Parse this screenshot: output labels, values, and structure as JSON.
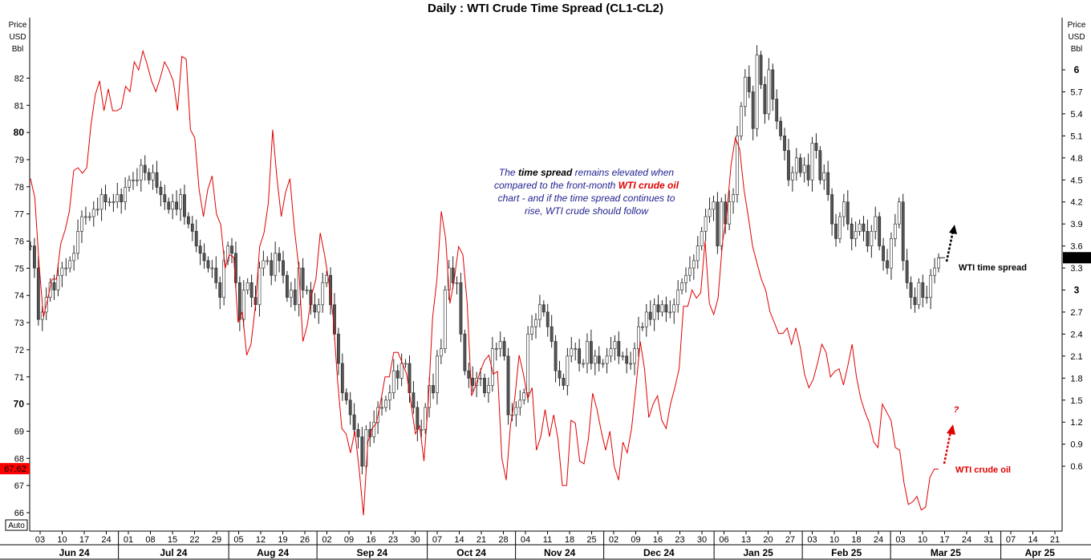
{
  "title": "Daily : WTI Crude Time Spread (CL1-CL2)",
  "left_axis_unit": [
    "Price",
    "USD",
    "Bbl"
  ],
  "right_axis_unit": [
    "Price",
    "USD",
    "Bbl"
  ],
  "auto_label": "Auto",
  "annotation": {
    "line1_pre": "The",
    "line1_bold": "time spread",
    "line1_post": "remains elevated when",
    "line2_pre": "compared to the front-month",
    "line2_red": "WTI crude oil",
    "line3": "chart - and if the time spread continues to",
    "line4": "rise, WTI crude should follow"
  },
  "labels": {
    "spread": "WTI time spread",
    "crude": "WTI crude oil",
    "question": "?"
  },
  "current_values": {
    "crude": "67.62",
    "spread": "3.44"
  },
  "colors": {
    "crude": "#e00000",
    "candle": "#555555",
    "price_box_crude": "#ff0000",
    "price_box_spread": "#000000"
  },
  "chart_data": {
    "type": "line",
    "title": "Daily : WTI Crude Time Spread (CL1-CL2)",
    "left_axis": {
      "ticks": [
        "66",
        "67",
        "68",
        "69",
        "70",
        "71",
        "72",
        "73",
        "74",
        "75",
        "76",
        "77",
        "78",
        "79",
        "80",
        "81",
        "82"
      ],
      "bold_ticks": [
        "70",
        "80"
      ],
      "range": [
        65.6,
        84.5
      ]
    },
    "right_axis": {
      "ticks": [
        "0.6",
        "0.9",
        "1.2",
        "1.5",
        "1.8",
        "2.1",
        "2.4",
        "2.7",
        "3",
        "3.3",
        "3.6",
        "3.9",
        "4.2",
        "4.5",
        "4.8",
        "5.1",
        "5.4",
        "5.7",
        "6"
      ],
      "bold_ticks": [
        "3",
        "6"
      ],
      "range": [
        0.33,
        6.62
      ]
    },
    "day_ticks": [
      "03",
      "10",
      "17",
      "24",
      "01",
      "08",
      "15",
      "22",
      "29",
      "05",
      "12",
      "19",
      "26",
      "02",
      "09",
      "16",
      "23",
      "30",
      "07",
      "14",
      "21",
      "28",
      "04",
      "11",
      "18",
      "25",
      "02",
      "09",
      "16",
      "23",
      "30",
      "06",
      "13",
      "20",
      "27",
      "03",
      "10",
      "18",
      "24",
      "03",
      "10",
      "17",
      "24",
      "31",
      "07",
      "14",
      "21"
    ],
    "months": [
      "Jun 24",
      "Jul 24",
      "Aug 24",
      "Sep 24",
      "Oct 24",
      "Nov 24",
      "Dec 24",
      "Jan 25",
      "Feb 25",
      "Mar 25",
      "Apr 25"
    ],
    "series": [
      {
        "name": "WTI crude oil",
        "type": "line",
        "axis": "left",
        "values": [
          78.3,
          77.6,
          75.1,
          73.2,
          73.9,
          74.6,
          74.6,
          75.9,
          76.4,
          77.1,
          78.6,
          78.7,
          78.5,
          78.7,
          80.3,
          81.4,
          81.9,
          80.8,
          81.6,
          80.8,
          80.8,
          80.9,
          81.7,
          81.5,
          82.6,
          82.3,
          83.0,
          82.5,
          81.9,
          81.5,
          82.0,
          82.6,
          82.3,
          81.9,
          80.8,
          82.8,
          82.7,
          80.1,
          79.8,
          77.9,
          76.9,
          77.9,
          78.4,
          77.0,
          76.6,
          75.0,
          75.5,
          75.4,
          73.0,
          73.4,
          71.8,
          72.2,
          73.6,
          75.8,
          76.3,
          77.4,
          80.1,
          78.3,
          76.9,
          77.8,
          78.3,
          76.5,
          75.1,
          72.3,
          72.9,
          74.0,
          74.6,
          76.3,
          75.5,
          74.5,
          73.2,
          70.9,
          69.1,
          68.9,
          68.2,
          69.0,
          67.6,
          65.9,
          68.6,
          69.1,
          69.3,
          70.1,
          71.0,
          71.0,
          71.9,
          71.9,
          71.5,
          71.1,
          70.0,
          68.9,
          69.2,
          67.9,
          70.1,
          73.2,
          74.6,
          77.1,
          76.1,
          73.7,
          74.6,
          75.8,
          75.5,
          73.7,
          70.3,
          70.7,
          71.2,
          71.6,
          71.8,
          71.1,
          71.2,
          68.0,
          67.2,
          69.2,
          70.2,
          71.8,
          71.1,
          70.2,
          70.6,
          68.3,
          68.8,
          69.8,
          68.8,
          69.6,
          68.7,
          67.0,
          67.0,
          69.4,
          69.3,
          67.9,
          67.8,
          68.7,
          70.4,
          69.8,
          69.0,
          68.3,
          69.0,
          67.7,
          67.2,
          68.6,
          68.2,
          69.1,
          70.6,
          72.3,
          71.3,
          69.5,
          70.0,
          70.3,
          69.4,
          69.1,
          70.0,
          70.6,
          71.3,
          73.6,
          73.6,
          74.2,
          73.9,
          74.1,
          76.0,
          73.7,
          73.3,
          73.9,
          75.9,
          77.0,
          78.8,
          79.8,
          79.4,
          77.9,
          76.9,
          75.8,
          75.2,
          74.6,
          74.2,
          73.4,
          73.0,
          72.6,
          72.6,
          72.8,
          72.2,
          72.8,
          72.1,
          71.1,
          70.6,
          70.9,
          71.5,
          72.2,
          71.9,
          71.0,
          71.2,
          71.3,
          70.7,
          71.4,
          72.2,
          71.0,
          70.2,
          69.7,
          69.3,
          68.6,
          68.4,
          70.0,
          69.7,
          69.4,
          68.4,
          68.3,
          67.1,
          66.3,
          66.4,
          66.6,
          66.1,
          66.2,
          67.3,
          67.6,
          67.6
        ]
      },
      {
        "name": "WTI time spread",
        "type": "candlestick",
        "axis": "right",
        "closes": [
          3.6,
          3.3,
          2.6,
          2.7,
          2.9,
          3.1,
          3.0,
          3.2,
          3.3,
          3.3,
          3.4,
          3.5,
          3.8,
          4.0,
          4.0,
          4.0,
          4.1,
          4.1,
          4.3,
          4.2,
          4.2,
          4.2,
          4.3,
          4.2,
          4.4,
          4.5,
          4.5,
          4.5,
          4.7,
          4.6,
          4.5,
          4.6,
          4.4,
          4.3,
          4.2,
          4.1,
          4.2,
          4.1,
          4.3,
          4.0,
          3.9,
          3.8,
          3.6,
          3.5,
          3.4,
          3.3,
          3.3,
          3.1,
          2.9,
          3.4,
          3.6,
          3.5,
          3.1,
          2.6,
          3.0,
          3.1,
          2.9,
          2.8,
          3.3,
          3.4,
          3.4,
          3.2,
          3.5,
          3.4,
          3.2,
          2.9,
          3.0,
          2.8,
          3.3,
          3.0,
          3.0,
          2.8,
          2.7,
          2.8,
          3.1,
          3.2,
          2.8,
          2.4,
          2.0,
          1.6,
          1.5,
          1.3,
          1.1,
          1.0,
          0.6,
          1.1,
          1.0,
          1.2,
          1.4,
          1.4,
          1.5,
          1.6,
          1.9,
          1.8,
          2.0,
          2.0,
          1.6,
          1.4,
          1.1,
          1.1,
          1.4,
          1.7,
          1.6,
          2.1,
          2.2,
          3.0,
          3.3,
          3.1,
          3.1,
          2.4,
          1.9,
          1.8,
          1.7,
          1.8,
          1.8,
          1.6,
          1.7,
          2.2,
          2.2,
          2.3,
          2.1,
          1.3,
          1.3,
          1.4,
          1.5,
          1.6,
          2.4,
          2.5,
          2.6,
          2.8,
          2.7,
          2.5,
          2.3,
          1.9,
          1.8,
          1.7,
          2.1,
          2.2,
          2.2,
          2.0,
          2.0,
          2.3,
          2.0,
          2.1,
          2.0,
          2.0,
          2.1,
          2.2,
          2.3,
          2.1,
          2.1,
          2.0,
          2.0,
          2.2,
          2.5,
          2.5,
          2.7,
          2.6,
          2.8,
          2.7,
          2.8,
          2.7,
          2.7,
          2.8,
          3.0,
          3.1,
          3.2,
          3.3,
          3.4,
          3.6,
          3.8,
          4.0,
          4.1,
          4.2,
          3.6,
          4.2,
          3.9,
          4.2,
          4.3,
          5.1,
          5.5,
          5.9,
          5.7,
          5.2,
          6.2,
          5.8,
          5.4,
          6.0,
          5.6,
          5.3,
          5.1,
          4.9,
          4.5,
          4.6,
          4.8,
          4.6,
          4.7,
          4.5,
          5.0,
          4.9,
          4.5,
          4.6,
          4.3,
          3.9,
          3.7,
          4.0,
          4.2,
          3.9,
          3.7,
          3.8,
          3.9,
          3.8,
          3.6,
          3.8,
          4.0,
          3.6,
          3.4,
          3.3,
          3.7,
          3.9,
          4.2,
          3.4,
          3.1,
          2.9,
          2.8,
          3.1,
          2.9,
          2.9,
          3.2,
          3.3,
          3.44
        ]
      }
    ]
  }
}
